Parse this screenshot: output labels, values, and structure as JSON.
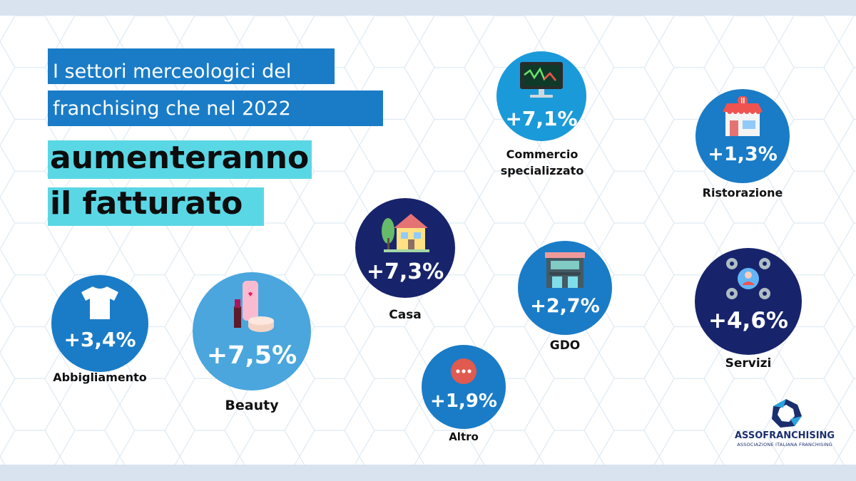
{
  "title": {
    "line1": "I settori merceologici del",
    "line2": "franchising che nel 2022",
    "highlight1": "aumenteranno",
    "highlight2": "il fatturato"
  },
  "sectors": [
    {
      "key": "commercio",
      "value": "+7,1%",
      "label_line1": "Commercio",
      "label_line2": "specializzato",
      "icon": "monitor-chart-icon",
      "color": "#1b9ad9"
    },
    {
      "key": "ristorazione",
      "value": "+1,3%",
      "label_line1": "Ristorazione",
      "icon": "restaurant-store-icon",
      "color": "#1a7cc7"
    },
    {
      "key": "casa",
      "value": "+7,3%",
      "label_line1": "Casa",
      "icon": "house-icon",
      "color": "#17246b"
    },
    {
      "key": "gdo",
      "value": "+2,7%",
      "label_line1": "GDO",
      "icon": "supermarket-building-icon",
      "color": "#1a7cc7"
    },
    {
      "key": "servizi",
      "value": "+4,6%",
      "label_line1": "Servizi",
      "icon": "gears-person-icon",
      "color": "#17246b"
    },
    {
      "key": "abbigliamento",
      "value": "+3,4%",
      "label_line1": "Abbigliamento",
      "icon": "tshirt-icon",
      "color": "#1a7cc7"
    },
    {
      "key": "beauty",
      "value": "+7,5%",
      "label_line1": "Beauty",
      "icon": "cosmetics-icon",
      "color": "#4aa6dd"
    },
    {
      "key": "altro",
      "value": "+1,9%",
      "label_line1": "Altro",
      "icon": "more-dots-icon",
      "color": "#1a7cc7"
    }
  ],
  "logo": {
    "name": "ASSOFRANCHISING",
    "subtitle": "ASSOCIAZIONE ITALIANA FRANCHISING",
    "icon": "assofranchising-logo-icon"
  }
}
